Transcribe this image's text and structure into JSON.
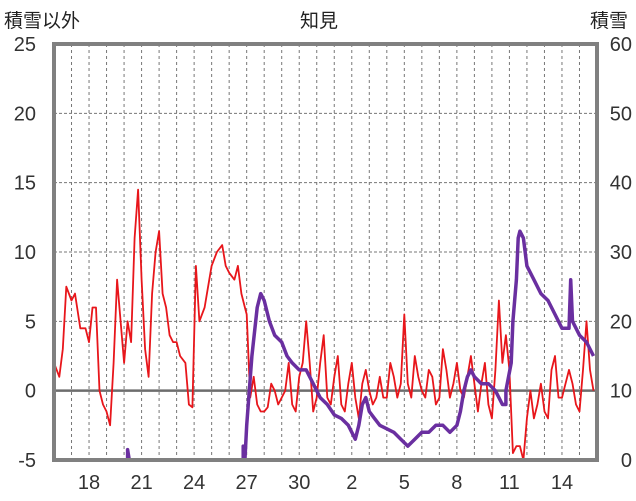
{
  "chart_data": {
    "type": "line",
    "title": "知見",
    "left_axis_label": "積雪以外",
    "right_axis_label": "積雪",
    "left_ylim": [
      -5,
      25
    ],
    "left_yticks": [
      -5,
      0,
      5,
      10,
      15,
      20,
      25
    ],
    "right_ylim": [
      0,
      60
    ],
    "right_yticks": [
      0,
      10,
      20,
      30,
      40,
      50,
      60
    ],
    "x_start_day": 16,
    "x_range_days": 31,
    "x_ticks": [
      {
        "label": "18",
        "offset": 2
      },
      {
        "label": "21",
        "offset": 5
      },
      {
        "label": "24",
        "offset": 8
      },
      {
        "label": "27",
        "offset": 11
      },
      {
        "label": "30",
        "offset": 14
      },
      {
        "label": "2",
        "offset": 17
      },
      {
        "label": "5",
        "offset": 20
      },
      {
        "label": "8",
        "offset": 23
      },
      {
        "label": "11",
        "offset": 26
      },
      {
        "label": "14",
        "offset": 29
      }
    ],
    "grid": true,
    "colors": {
      "series_red": "#e8161b",
      "series_purple": "#6a2fa0",
      "frame": "#808080",
      "grid": "#777777"
    },
    "series": [
      {
        "axis": "left",
        "color": "#e8161b",
        "points": [
          [
            0.0,
            2.0
          ],
          [
            0.3,
            1.0
          ],
          [
            0.5,
            3.0
          ],
          [
            0.7,
            7.5
          ],
          [
            1.0,
            6.5
          ],
          [
            1.2,
            7.0
          ],
          [
            1.5,
            4.5
          ],
          [
            1.8,
            4.5
          ],
          [
            2.0,
            3.5
          ],
          [
            2.2,
            6.0
          ],
          [
            2.4,
            6.0
          ],
          [
            2.6,
            0.0
          ],
          [
            2.8,
            -1.0
          ],
          [
            3.0,
            -1.5
          ],
          [
            3.2,
            -2.5
          ],
          [
            3.4,
            2.0
          ],
          [
            3.6,
            8.0
          ],
          [
            3.8,
            5.0
          ],
          [
            4.0,
            2.0
          ],
          [
            4.2,
            5.0
          ],
          [
            4.4,
            3.5
          ],
          [
            4.6,
            11.0
          ],
          [
            4.8,
            14.5
          ],
          [
            5.0,
            8.0
          ],
          [
            5.2,
            3.0
          ],
          [
            5.4,
            1.0
          ],
          [
            5.6,
            7.0
          ],
          [
            5.8,
            10.0
          ],
          [
            6.0,
            11.5
          ],
          [
            6.2,
            7.0
          ],
          [
            6.4,
            6.0
          ],
          [
            6.6,
            4.0
          ],
          [
            6.8,
            3.5
          ],
          [
            7.0,
            3.5
          ],
          [
            7.2,
            2.5
          ],
          [
            7.5,
            2.0
          ],
          [
            7.7,
            -1.0
          ],
          [
            7.9,
            -1.2
          ],
          [
            8.1,
            9.0
          ],
          [
            8.3,
            5.0
          ],
          [
            8.6,
            6.0
          ],
          [
            8.8,
            7.5
          ],
          [
            9.0,
            9.0
          ],
          [
            9.3,
            10.0
          ],
          [
            9.6,
            10.5
          ],
          [
            9.8,
            9.0
          ],
          [
            10.0,
            8.5
          ],
          [
            10.3,
            8.0
          ],
          [
            10.5,
            9.0
          ],
          [
            10.7,
            7.0
          ],
          [
            10.9,
            6.0
          ],
          [
            11.0,
            5.5
          ],
          [
            11.2,
            -0.5
          ],
          [
            11.4,
            1.0
          ],
          [
            11.6,
            -1.0
          ],
          [
            11.8,
            -1.5
          ],
          [
            12.0,
            -1.5
          ],
          [
            12.2,
            -1.2
          ],
          [
            12.4,
            0.5
          ],
          [
            12.6,
            0.0
          ],
          [
            12.8,
            -1.0
          ],
          [
            13.0,
            -0.5
          ],
          [
            13.2,
            0.0
          ],
          [
            13.4,
            2.0
          ],
          [
            13.6,
            -1.0
          ],
          [
            13.8,
            -1.5
          ],
          [
            14.0,
            1.0
          ],
          [
            14.2,
            2.0
          ],
          [
            14.4,
            5.0
          ],
          [
            14.6,
            2.0
          ],
          [
            14.8,
            -1.5
          ],
          [
            15.0,
            -0.5
          ],
          [
            15.2,
            2.0
          ],
          [
            15.4,
            4.0
          ],
          [
            15.6,
            -0.5
          ],
          [
            15.8,
            -1.0
          ],
          [
            16.0,
            1.0
          ],
          [
            16.2,
            2.5
          ],
          [
            16.4,
            -1.0
          ],
          [
            16.6,
            -1.5
          ],
          [
            16.8,
            0.5
          ],
          [
            17.0,
            2.0
          ],
          [
            17.2,
            -0.5
          ],
          [
            17.4,
            -2.0
          ],
          [
            17.6,
            0.5
          ],
          [
            17.8,
            1.5
          ],
          [
            18.0,
            0.0
          ],
          [
            18.2,
            -1.0
          ],
          [
            18.4,
            -0.5
          ],
          [
            18.6,
            1.0
          ],
          [
            18.8,
            -0.5
          ],
          [
            19.0,
            -0.5
          ],
          [
            19.2,
            2.0
          ],
          [
            19.4,
            1.0
          ],
          [
            19.6,
            -0.5
          ],
          [
            19.8,
            0.5
          ],
          [
            20.0,
            5.5
          ],
          [
            20.2,
            0.5
          ],
          [
            20.4,
            -0.5
          ],
          [
            20.6,
            2.5
          ],
          [
            20.8,
            1.0
          ],
          [
            21.0,
            0.0
          ],
          [
            21.2,
            -0.5
          ],
          [
            21.4,
            1.5
          ],
          [
            21.6,
            1.0
          ],
          [
            21.8,
            -1.0
          ],
          [
            22.0,
            -0.5
          ],
          [
            22.2,
            3.0
          ],
          [
            22.4,
            1.5
          ],
          [
            22.6,
            -0.5
          ],
          [
            22.8,
            0.5
          ],
          [
            23.0,
            2.0
          ],
          [
            23.2,
            0.0
          ],
          [
            23.4,
            -0.5
          ],
          [
            23.6,
            1.0
          ],
          [
            23.8,
            2.5
          ],
          [
            24.0,
            0.5
          ],
          [
            24.2,
            -1.5
          ],
          [
            24.4,
            0.5
          ],
          [
            24.6,
            2.0
          ],
          [
            24.8,
            -1.0
          ],
          [
            25.0,
            -2.0
          ],
          [
            25.2,
            1.5
          ],
          [
            25.4,
            6.5
          ],
          [
            25.6,
            2.0
          ],
          [
            25.8,
            4.0
          ],
          [
            26.0,
            1.5
          ],
          [
            26.2,
            -4.5
          ],
          [
            26.4,
            -4.0
          ],
          [
            26.6,
            -4.0
          ],
          [
            26.8,
            -5.0
          ],
          [
            27.0,
            -2.0
          ],
          [
            27.2,
            0.0
          ],
          [
            27.4,
            -2.0
          ],
          [
            27.6,
            -1.0
          ],
          [
            27.8,
            0.5
          ],
          [
            28.0,
            -1.5
          ],
          [
            28.2,
            -2.0
          ],
          [
            28.4,
            1.5
          ],
          [
            28.6,
            2.5
          ],
          [
            28.8,
            -0.5
          ],
          [
            29.0,
            -0.5
          ],
          [
            29.2,
            0.5
          ],
          [
            29.4,
            1.5
          ],
          [
            29.6,
            0.5
          ],
          [
            29.8,
            -1.0
          ],
          [
            30.0,
            -1.5
          ],
          [
            30.2,
            1.5
          ],
          [
            30.4,
            5.0
          ],
          [
            30.6,
            1.5
          ],
          [
            30.8,
            0.0
          ]
        ]
      },
      {
        "axis": "right",
        "color": "#6a2fa0",
        "points": [
          [
            0.0,
            0.0
          ],
          [
            4.2,
            0.0
          ],
          [
            4.2,
            1.5
          ],
          [
            4.3,
            0.0
          ],
          [
            10.8,
            0.0
          ],
          [
            10.8,
            2.0
          ],
          [
            10.9,
            0.0
          ],
          [
            11.0,
            5.0
          ],
          [
            11.3,
            15.0
          ],
          [
            11.6,
            22.0
          ],
          [
            11.8,
            24.0
          ],
          [
            12.0,
            23.0
          ],
          [
            12.3,
            20.0
          ],
          [
            12.6,
            18.0
          ],
          [
            13.0,
            17.0
          ],
          [
            13.3,
            15.0
          ],
          [
            13.6,
            14.0
          ],
          [
            14.0,
            13.0
          ],
          [
            14.4,
            13.0
          ],
          [
            14.8,
            11.0
          ],
          [
            15.2,
            9.0
          ],
          [
            15.6,
            8.0
          ],
          [
            16.0,
            6.5
          ],
          [
            16.4,
            6.0
          ],
          [
            16.8,
            5.0
          ],
          [
            17.0,
            4.0
          ],
          [
            17.2,
            3.0
          ],
          [
            17.4,
            5.0
          ],
          [
            17.6,
            8.0
          ],
          [
            17.8,
            9.0
          ],
          [
            18.0,
            7.0
          ],
          [
            18.3,
            6.0
          ],
          [
            18.6,
            5.0
          ],
          [
            19.0,
            4.5
          ],
          [
            19.4,
            4.0
          ],
          [
            19.8,
            3.0
          ],
          [
            20.2,
            2.0
          ],
          [
            20.6,
            3.0
          ],
          [
            21.0,
            4.0
          ],
          [
            21.4,
            4.0
          ],
          [
            21.8,
            5.0
          ],
          [
            22.2,
            5.0
          ],
          [
            22.6,
            4.0
          ],
          [
            23.0,
            5.0
          ],
          [
            23.2,
            7.0
          ],
          [
            23.4,
            10.0
          ],
          [
            23.6,
            12.0
          ],
          [
            23.8,
            13.0
          ],
          [
            24.0,
            12.0
          ],
          [
            24.4,
            11.0
          ],
          [
            24.8,
            11.0
          ],
          [
            25.2,
            10.0
          ],
          [
            25.6,
            8.0
          ],
          [
            25.8,
            8.0
          ],
          [
            25.8,
            10.0
          ],
          [
            26.1,
            14.0
          ],
          [
            26.2,
            20.0
          ],
          [
            26.4,
            26.0
          ],
          [
            26.5,
            32.0
          ],
          [
            26.6,
            33.0
          ],
          [
            26.8,
            32.0
          ],
          [
            27.0,
            28.0
          ],
          [
            27.4,
            26.0
          ],
          [
            27.8,
            24.0
          ],
          [
            28.2,
            23.0
          ],
          [
            28.6,
            21.0
          ],
          [
            29.0,
            19.0
          ],
          [
            29.4,
            19.0
          ],
          [
            29.5,
            26.0
          ],
          [
            29.6,
            20.0
          ],
          [
            30.0,
            18.0
          ],
          [
            30.4,
            17.0
          ],
          [
            30.8,
            15.0
          ]
        ]
      }
    ]
  }
}
